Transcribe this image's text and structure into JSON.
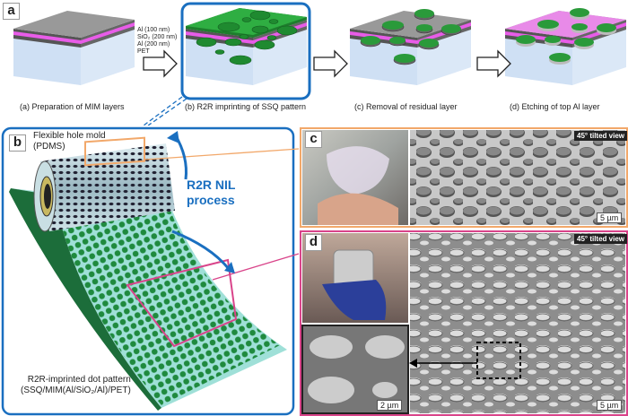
{
  "panel_a": {
    "label": "a",
    "layers": [
      "Al (100 nm)",
      "SiO₂ (200 nm)",
      "Al (200 nm)",
      "PET"
    ],
    "steps": [
      "(a) Preparation of MIM layers",
      "(b) R2R imprinting of SSQ pattern",
      "(c) Removal of residual layer",
      "(d) Etching of top Al layer"
    ]
  },
  "panel_b": {
    "label": "b",
    "mold_line1": "Flexible hole mold",
    "mold_line2": "(PDMS)",
    "process_line1": "R2R NIL",
    "process_line2": "process",
    "pattern_line1": "R2R-imprinted dot pattern",
    "pattern_line2": "(SSQ/MIM(Al/SiO₂/Al)/PET)"
  },
  "panel_c": {
    "label": "c",
    "view": "45° tilted view",
    "scale": "5 µm"
  },
  "panel_d": {
    "label": "d",
    "view": "45° tilted view",
    "scale": "5 µm",
    "inset_scale": "2 µm"
  },
  "colors": {
    "frame_blue": "#1a6fc0",
    "frame_orange": "#f2a86a",
    "frame_pink": "#d9448a",
    "ssq_green": "#2a9a3a",
    "sio2_magenta": "#e85ce8"
  }
}
